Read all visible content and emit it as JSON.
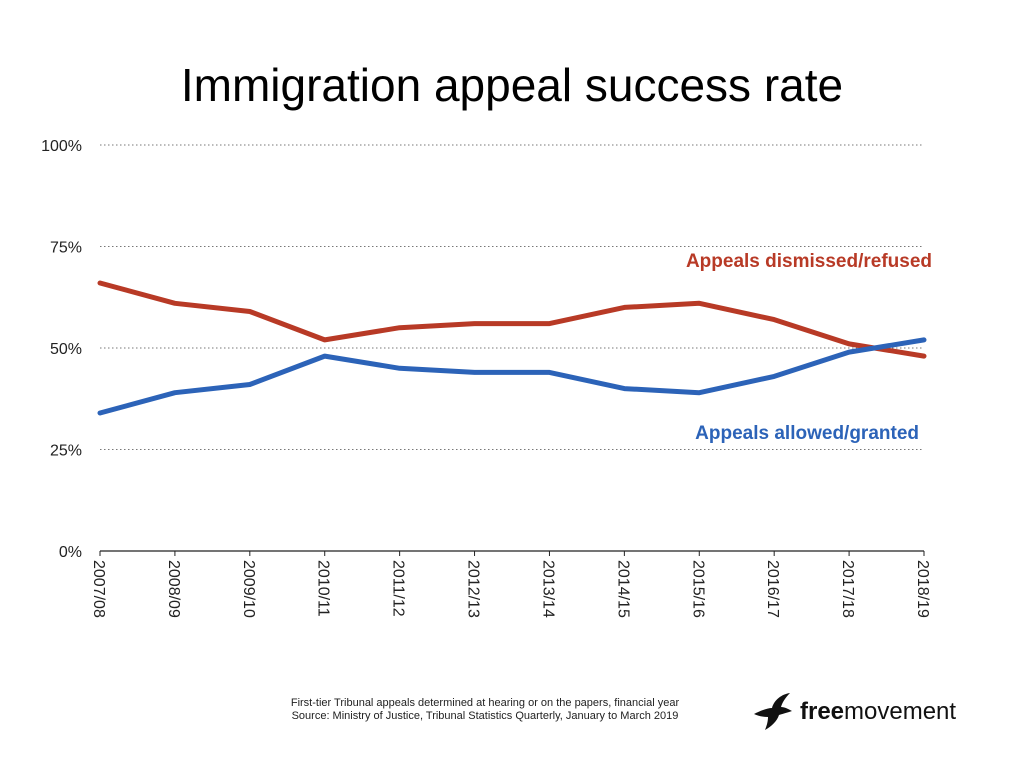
{
  "chart_data": {
    "type": "line",
    "title": "Immigration appeal success rate",
    "categories": [
      "2007/08",
      "2008/09",
      "2009/10",
      "2010/11",
      "2011/12",
      "2012/13",
      "2013/14",
      "2014/15",
      "2015/16",
      "2016/17",
      "2017/18",
      "2018/19"
    ],
    "y_ticks": [
      "0%",
      "25%",
      "50%",
      "75%",
      "100%"
    ],
    "ylim": [
      0,
      100
    ],
    "grid": "horizontal dotted",
    "series": [
      {
        "name": "Appeals dismissed/refused",
        "color": "#b83a26",
        "values": [
          66,
          61,
          59,
          52,
          55,
          56,
          56,
          60,
          61,
          57,
          51,
          48
        ]
      },
      {
        "name": "Appeals allowed/granted",
        "color": "#2c63b8",
        "values": [
          34,
          39,
          41,
          48,
          45,
          44,
          44,
          40,
          39,
          43,
          49,
          52
        ]
      }
    ]
  },
  "footnote": {
    "line1": "First-tier Tribunal appeals determined at hearing or on the papers, financial year",
    "line2": "Source: Ministry of Justice, Tribunal Statistics Quarterly, January to March 2019"
  },
  "brand": {
    "bold": "free",
    "regular": "movement",
    "icon": "bird-logo-icon"
  }
}
